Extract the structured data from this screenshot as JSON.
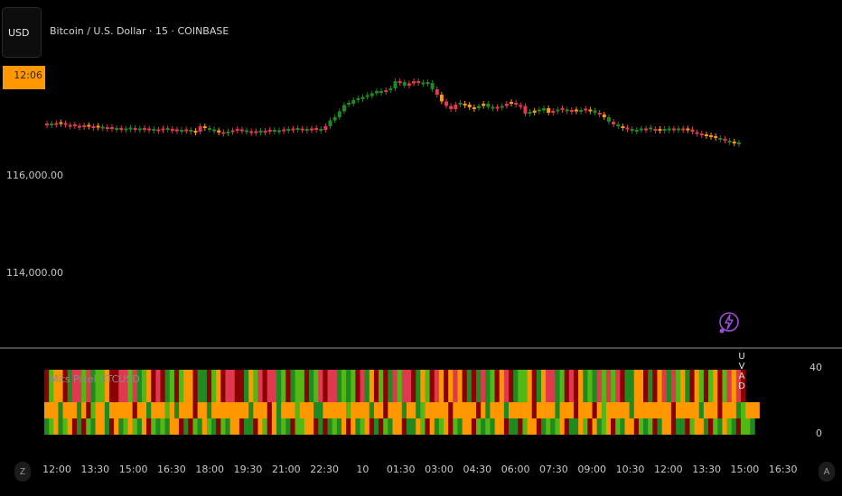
{
  "header": {
    "currency_button": "USD",
    "symbol_title": "Bitcoin / U.S. Dollar · 15 · COINBASE",
    "time_badge": "12:06"
  },
  "price_scale": {
    "labels": [
      "116,000.00",
      "114,000.00"
    ]
  },
  "indicator": {
    "label": "Mits Pixel BTCUSD",
    "scale_max": "40",
    "scale_min": "0",
    "vertical_letters": [
      "U",
      "V",
      "A",
      "D"
    ]
  },
  "time_axis": {
    "ticks": [
      "12:00",
      "13:30",
      "15:00",
      "16:30",
      "18:00",
      "19:30",
      "21:00",
      "22:30",
      "10",
      "01:30",
      "03:00",
      "04:30",
      "06:00",
      "07:30",
      "09:00",
      "10:30",
      "12:00",
      "13:30",
      "15:00",
      "16:30"
    ],
    "left_button": "Z",
    "right_button": "A"
  },
  "colors": {
    "bull": "#1f8a1f",
    "bear": "#e0394f",
    "neutral": "#ff9800",
    "dark_red": "#8b0000",
    "light_green": "#53b814",
    "badge": "#ff9800",
    "alert": "#9c4dd6"
  },
  "candles": {
    "levels": [
      0.36,
      0.36,
      0.35,
      0.33,
      0.37,
      0.39,
      0.38,
      0.41,
      0.4,
      0.39,
      0.42,
      0.41,
      0.43,
      0.44,
      0.44,
      0.46,
      0.46,
      0.47,
      0.45,
      0.46,
      0.47,
      0.46,
      0.47,
      0.48,
      0.49,
      0.47,
      0.46,
      0.48,
      0.49,
      0.5,
      0.49,
      0.5,
      0.52,
      0.4,
      0.44,
      0.46,
      0.49,
      0.54,
      0.55,
      0.54,
      0.51,
      0.48,
      0.49,
      0.51,
      0.53,
      0.53,
      0.52,
      0.52,
      0.5,
      0.5,
      0.51,
      0.49,
      0.48,
      0.47,
      0.46,
      0.47,
      0.48,
      0.47,
      0.46,
      0.48,
      0.4,
      0.27,
      0.2,
      0.07,
      -0.07,
      -0.1,
      -0.18,
      -0.2,
      -0.25,
      -0.27,
      -0.33,
      -0.38,
      -0.36,
      -0.4,
      -0.44,
      -0.6,
      -0.58,
      -0.5,
      -0.55,
      -0.6,
      -0.58,
      -0.55,
      -0.56,
      -0.42,
      -0.3,
      -0.15,
      -0.05,
      0.02,
      -0.08,
      -0.1,
      -0.08,
      -0.02,
      0.0,
      -0.05,
      -0.1,
      -0.03,
      -0.01,
      -0.01,
      -0.05,
      -0.1,
      -0.12,
      -0.08,
      -0.05,
      0.12,
      0.1,
      0.05,
      0.05,
      0.0,
      0.1,
      0.08,
      0.05,
      0.02,
      0.05,
      0.06,
      0.05,
      0.06,
      0.03,
      0.05,
      0.1,
      0.14,
      0.2,
      0.3,
      0.36,
      0.4,
      0.42,
      0.45,
      0.48,
      0.5,
      0.47,
      0.47,
      0.45,
      0.48,
      0.48,
      0.48,
      0.47,
      0.47,
      0.47,
      0.47,
      0.47,
      0.52,
      0.55,
      0.58,
      0.6,
      0.62,
      0.66,
      0.68,
      0.72,
      0.74,
      0.76,
      0.78
    ],
    "colors": "rgrnrrrrrnrngrrgrggrgrrgrrgrrgrgnrnggnrgrrrgrrgrrggrgrgrgrrgrggggggggggggrggrgrrrgggrnrrrgnnngnggrgrnrrrgnggnrgrgrngrngrngrgnrgggrgrnggrgrnrrrnnngrgngrgg"
  },
  "pixel_rows": {
    "row_a": "DLNNDGRRLRGLLNDDRRLRGLNDRDGLDLNNDGGDLNDRRDDGNLRDRRGLDGLLDGLRDRRGLGLDRGNDLDGRLRRDGNLDRNDNRNDGDGRGLDNRDGLLNDGNRRGLDRDNGLGRLRLRDGGNNDGDNRGRLNGDNLDLNDLRNRD",
    "row_b": "NNNGNNNGNDLNNGNNNNNDNNGNNNLNGNNNDNNGNNNNNNNNGNNNDNGNNNLNNNGGNNNNNLNNNNGNNDNNNGNNGLNNNNNDNNNNNDNGNNNGNNNNNDNNNNGNNNDNNNDNLNNNNNGNNNNNNNNDNNNNNGNNNDNNNGLNNN",
    "row_c": "GLNGLNDGDLGNNGDNGLNLGNDLGLGNNDGDLGNLGDLGNNDGGDNLDNGLGDLLNNDGDGLGNDNGLNDGDLGNNDGGNLDNGLNDLGNNDLGLGNNDGGDLNNDGLGLNDGGNLDNGLNDLGNNDLGLDGNNDGGDLNNGDLGNLGDLLG"
  }
}
